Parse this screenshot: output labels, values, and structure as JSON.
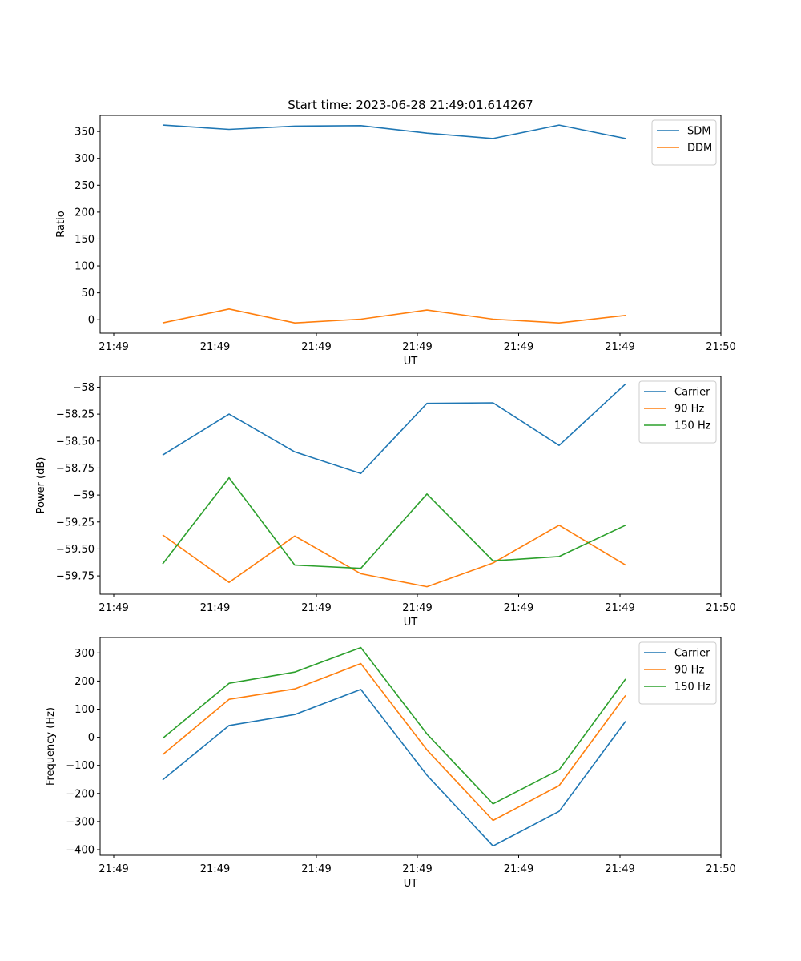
{
  "figure_title": "Start time: 2023-06-28 21:49:01.614267",
  "colors": {
    "blue": "#1f77b4",
    "orange": "#ff7f0e",
    "green": "#2ca02c"
  },
  "chart_data": [
    {
      "type": "line",
      "title": "Start time: 2023-06-28 21:49:01.614267",
      "xlabel": "UT",
      "ylabel": "Ratio",
      "x_tick_labels": [
        "21:49",
        "21:49",
        "21:49",
        "21:49",
        "21:49",
        "21:49",
        "21:50"
      ],
      "ylim": [
        -25,
        380
      ],
      "y_ticks": [
        0,
        50,
        100,
        150,
        200,
        250,
        300,
        350
      ],
      "grid": false,
      "legend_position": "upper right",
      "series": [
        {
          "name": "SDM",
          "color": "#1f77b4",
          "values": [
            362,
            354,
            360,
            361,
            347,
            337,
            362,
            337
          ]
        },
        {
          "name": "DDM",
          "color": "#ff7f0e",
          "values": [
            -6,
            20,
            -6,
            1,
            18,
            1,
            -6,
            8
          ]
        }
      ]
    },
    {
      "type": "line",
      "title": "",
      "xlabel": "UT",
      "ylabel": "Power (dB)",
      "x_tick_labels": [
        "21:49",
        "21:49",
        "21:49",
        "21:49",
        "21:49",
        "21:49",
        "21:50"
      ],
      "ylim": [
        -59.92,
        -57.9
      ],
      "y_ticks": [
        -59.75,
        -59.5,
        -59.25,
        -59.0,
        -58.75,
        -58.5,
        -58.25,
        -58.0
      ],
      "grid": false,
      "legend_position": "upper right",
      "series": [
        {
          "name": "Carrier",
          "color": "#1f77b4",
          "values": [
            -58.63,
            -58.25,
            -58.6,
            -58.8,
            -58.15,
            -58.145,
            -58.54,
            -57.97
          ]
        },
        {
          "name": "90 Hz",
          "color": "#ff7f0e",
          "values": [
            -59.37,
            -59.81,
            -59.38,
            -59.73,
            -59.85,
            -59.63,
            -59.28,
            -59.65
          ]
        },
        {
          "name": "150 Hz",
          "color": "#2ca02c",
          "values": [
            -59.64,
            -58.84,
            -59.65,
            -59.68,
            -58.99,
            -59.61,
            -59.57,
            -59.28
          ]
        }
      ]
    },
    {
      "type": "line",
      "title": "",
      "xlabel": "UT",
      "ylabel": "Frequency (Hz)",
      "x_tick_labels": [
        "21:49",
        "21:49",
        "21:49",
        "21:49",
        "21:49",
        "21:49",
        "21:50"
      ],
      "ylim": [
        -420,
        355
      ],
      "y_ticks": [
        -400,
        -300,
        -200,
        -100,
        0,
        100,
        200,
        300
      ],
      "grid": false,
      "legend_position": "upper right",
      "series": [
        {
          "name": "Carrier",
          "color": "#1f77b4",
          "values": [
            -152,
            42,
            81,
            170,
            -135,
            -387,
            -264,
            57
          ]
        },
        {
          "name": "90 Hz",
          "color": "#ff7f0e",
          "values": [
            -62,
            135,
            172,
            262,
            -45,
            -296,
            -172,
            149
          ]
        },
        {
          "name": "150 Hz",
          "color": "#2ca02c",
          "values": [
            -4,
            192,
            232,
            319,
            12,
            -237,
            -116,
            207
          ]
        }
      ]
    }
  ]
}
